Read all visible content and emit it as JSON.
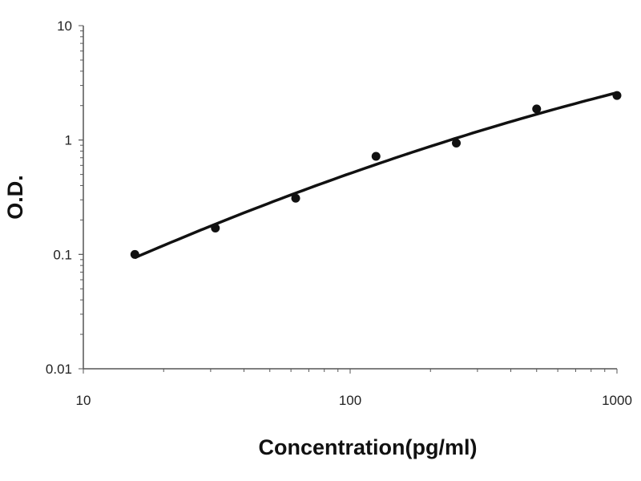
{
  "chart_data": {
    "type": "scatter",
    "title": "",
    "xlabel": "Concentration(pg/ml)",
    "ylabel": "O.D.",
    "x_scale": "log",
    "y_scale": "log",
    "xlim": [
      10,
      1000
    ],
    "ylim": [
      0.01,
      10
    ],
    "x_ticks": [
      "10",
      "100",
      "1000"
    ],
    "y_ticks": [
      "10",
      "1",
      "0.1",
      "0.01"
    ],
    "grid": false,
    "legend": "none",
    "series": [
      {
        "x": [
          15.6,
          31.25,
          62.5,
          125,
          250,
          500,
          1000
        ],
        "y": [
          0.1,
          0.17,
          0.31,
          0.72,
          0.94,
          1.87,
          2.45
        ],
        "marker": "filled-circle",
        "fit_line": "smooth-curve",
        "color": "#111111"
      }
    ]
  }
}
